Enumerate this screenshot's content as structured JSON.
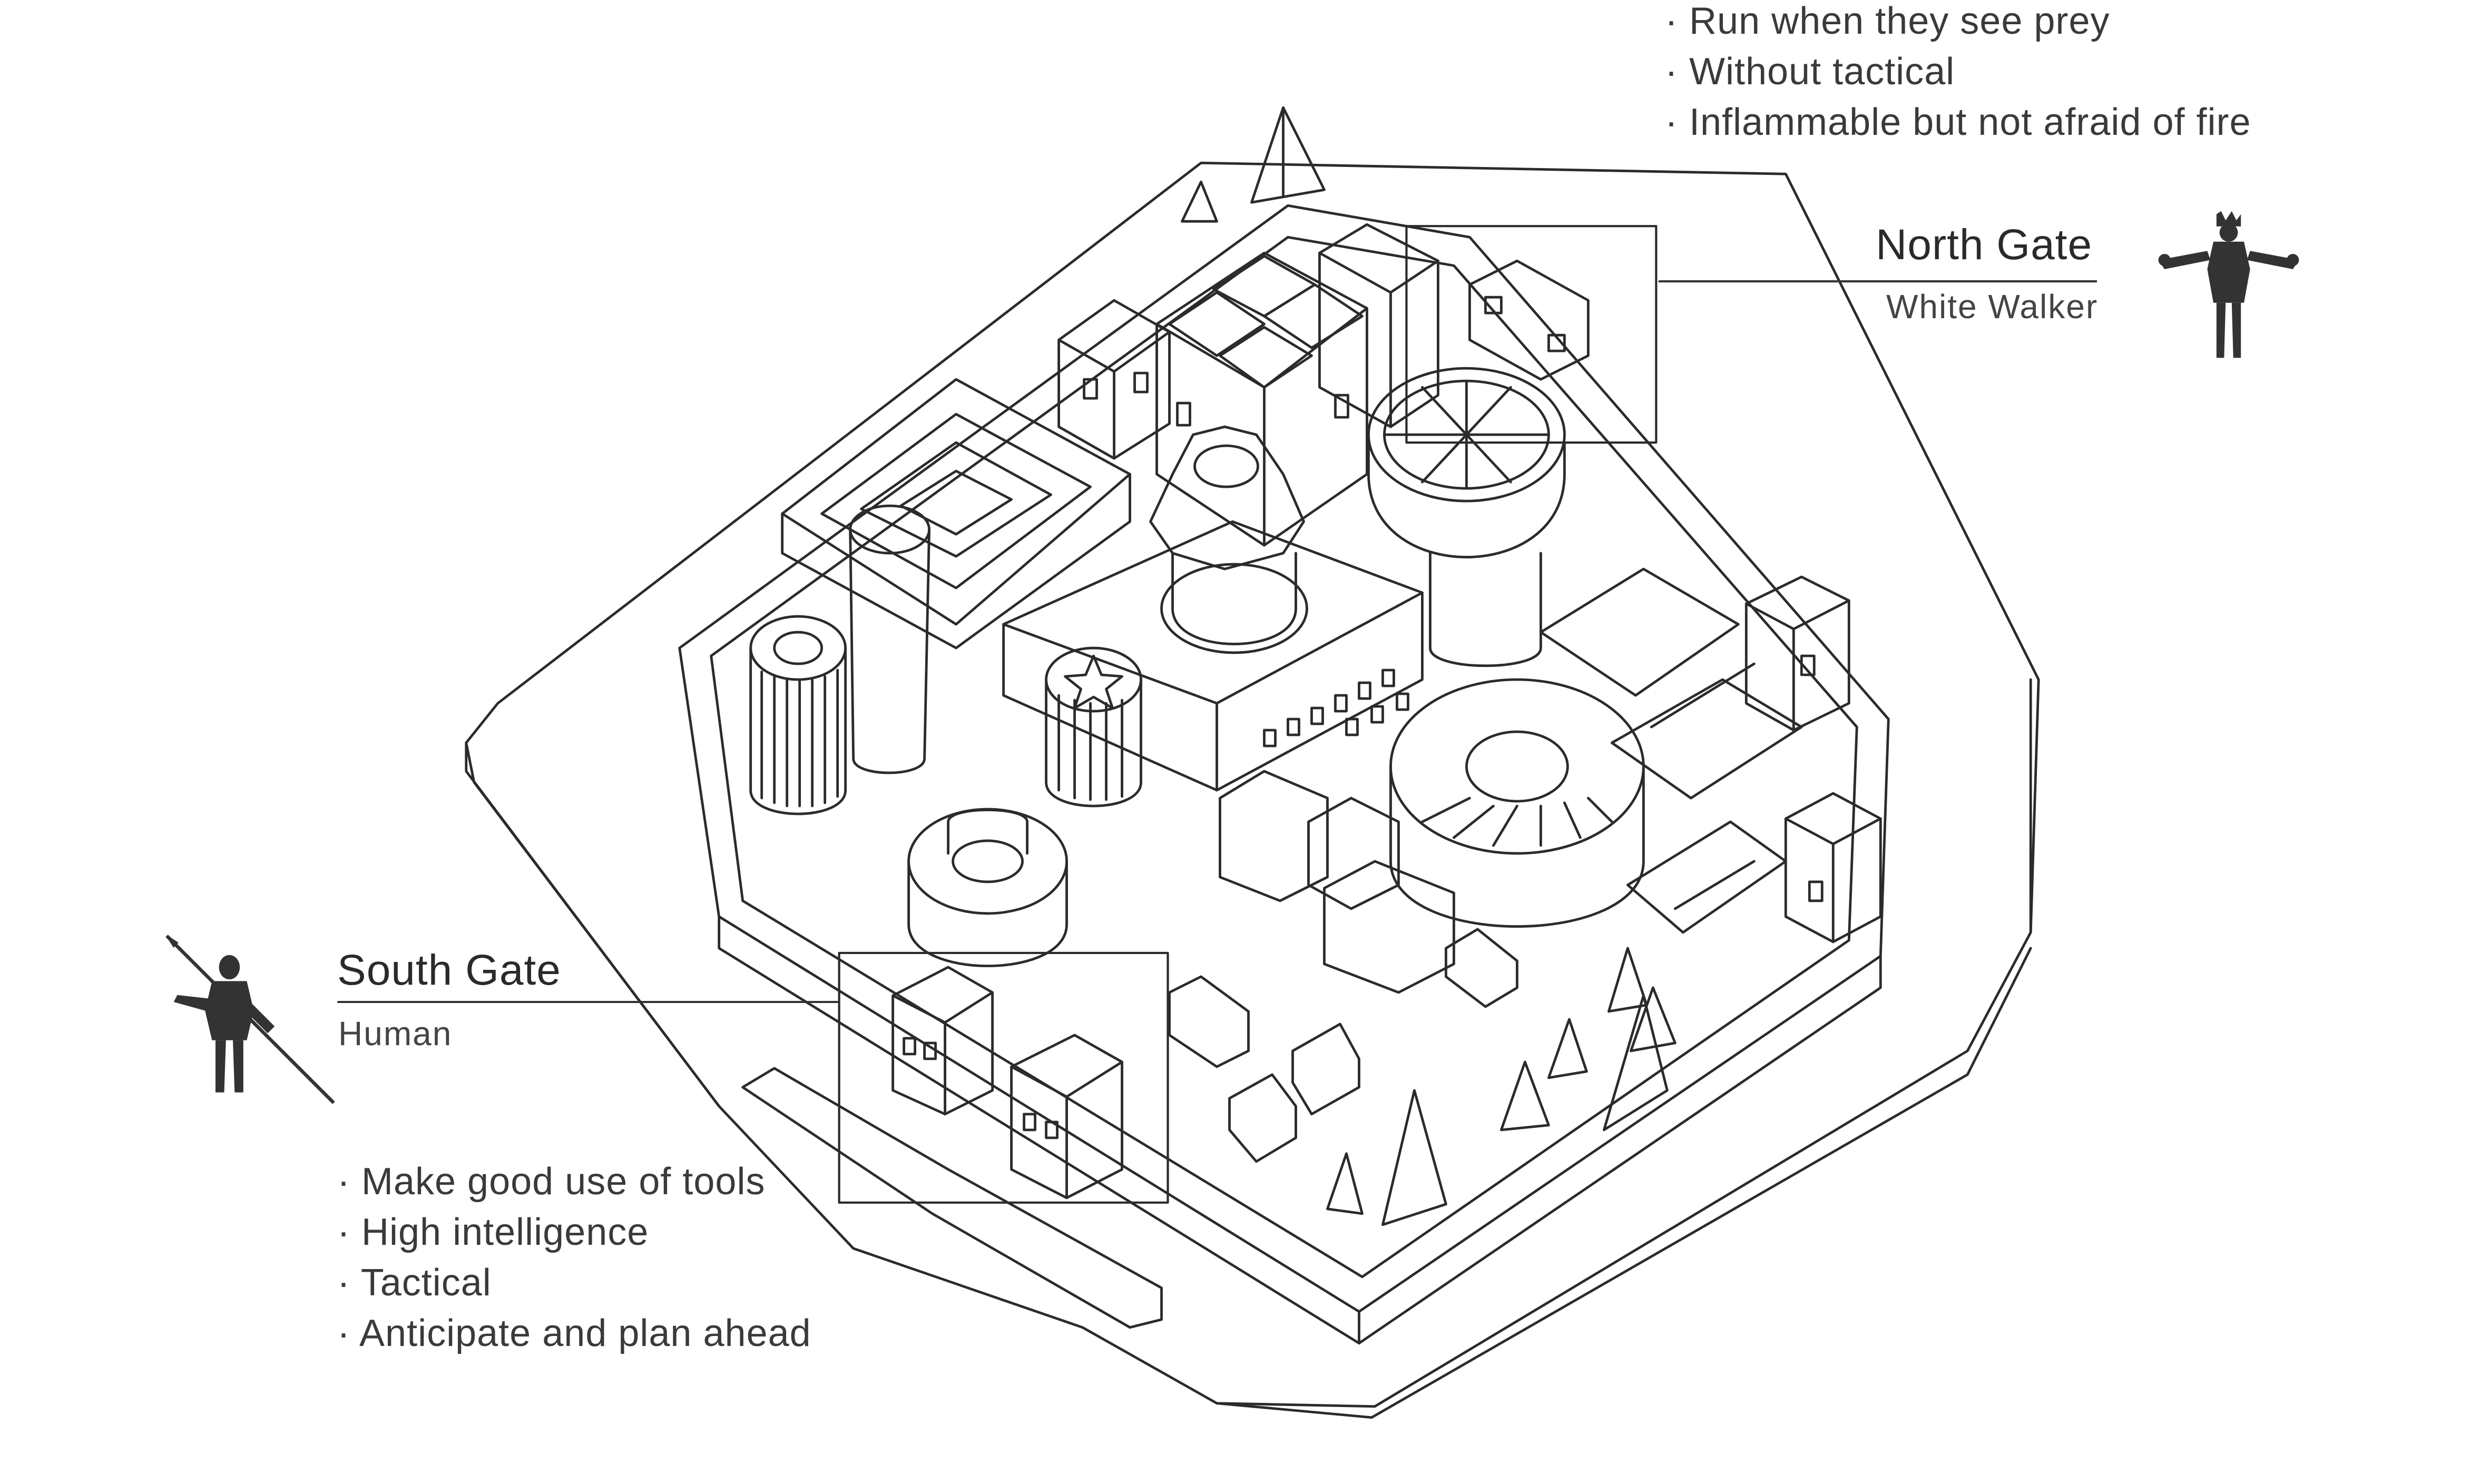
{
  "north_gate": {
    "title": "North Gate",
    "subtitle": "White Walker",
    "traits": [
      "Run when they see prey",
      "Without tactical",
      "Inflammable but not afraid of fire"
    ]
  },
  "south_gate": {
    "title": "South Gate",
    "subtitle": "Human",
    "traits": [
      "Make good use of tools",
      "High intelligence",
      "Tactical",
      "Anticipate and plan ahead"
    ]
  },
  "colors": {
    "line": "#2b2b2b",
    "figure": "#333333",
    "background": "#ffffff"
  },
  "icons": {
    "north_figure": "white-walker-silhouette-icon",
    "south_figure": "human-spearman-silhouette-icon"
  }
}
